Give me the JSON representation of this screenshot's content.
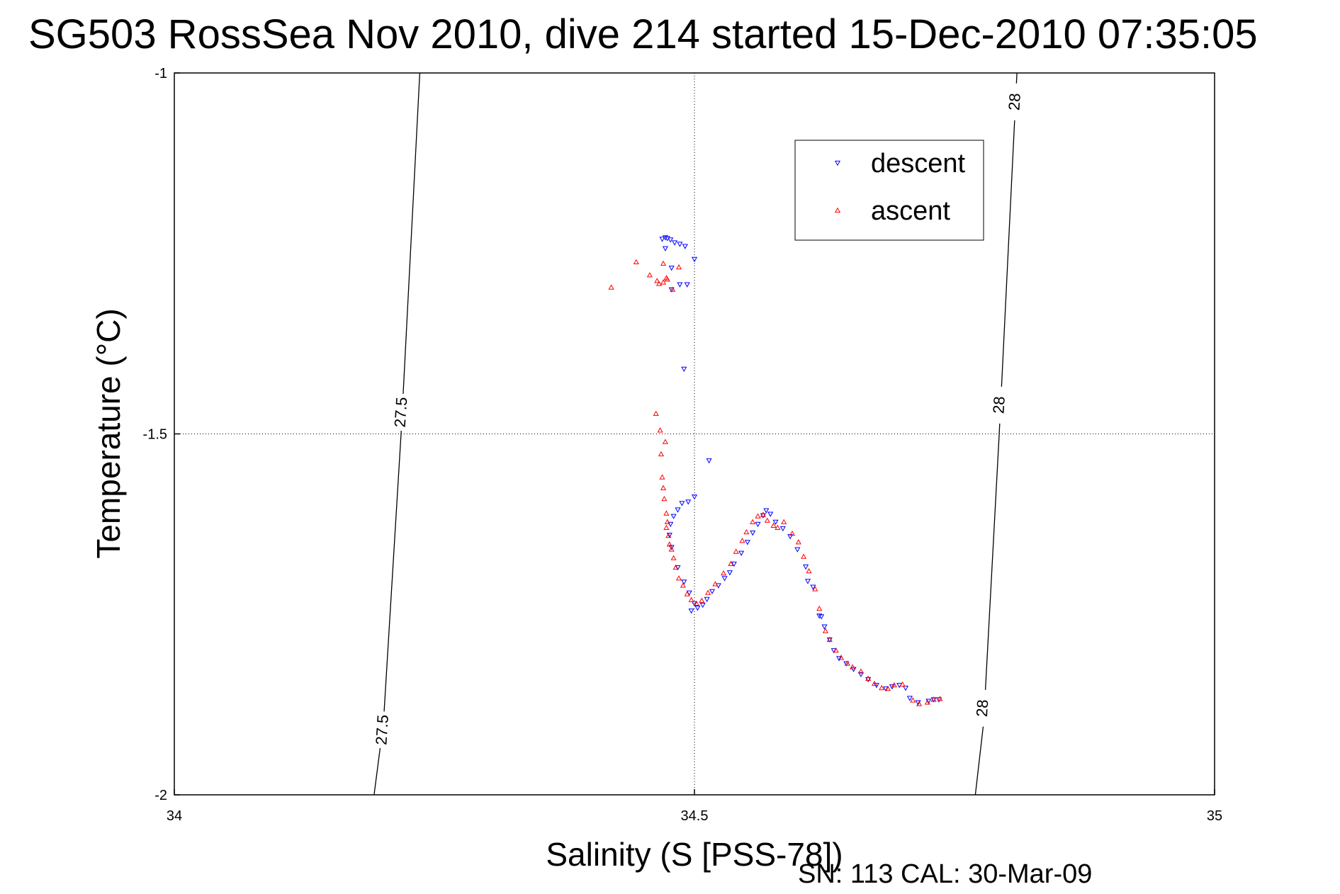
{
  "chart_data": {
    "type": "scatter",
    "title": "SG503 RossSea Nov 2010, dive 214 started 15-Dec-2010 07:35:05",
    "xlabel": "Salinity (S [PSS-78])",
    "ylabel": "Temperature (°C)",
    "xlim": [
      34,
      35
    ],
    "ylim": [
      -2,
      -1
    ],
    "xticks": [
      34,
      34.5,
      35
    ],
    "xtick_labels": [
      "34",
      "34.5",
      "35"
    ],
    "yticks": [
      -2,
      -1.5,
      -1
    ],
    "ytick_labels": [
      "-2",
      "-1.5",
      "-1"
    ],
    "grid": true,
    "legend_position": "top-right",
    "footer": "SN: 113  CAL: 30-Mar-09",
    "isopycnals": [
      {
        "sigma": "27.5",
        "points": [
          [
            34.192,
            -2.0
          ],
          [
            34.201,
            -1.9
          ],
          [
            34.218,
            -1.5
          ],
          [
            34.236,
            -1.0
          ]
        ],
        "labels": [
          {
            "x": 34.2,
            "y": -1.91,
            "text": "27.5"
          },
          {
            "x": 34.218,
            "y": -1.47,
            "text": "27.5"
          }
        ]
      },
      {
        "sigma": "28",
        "points": [
          [
            34.77,
            -2.0
          ],
          [
            34.778,
            -1.9
          ],
          [
            34.793,
            -1.5
          ],
          [
            34.81,
            -1.0
          ]
        ],
        "labels": [
          {
            "x": 34.777,
            "y": -1.88,
            "text": "28"
          },
          {
            "x": 34.793,
            "y": -1.46,
            "text": "28"
          },
          {
            "x": 34.808,
            "y": -1.04,
            "text": "28"
          }
        ]
      }
    ],
    "series": [
      {
        "name": "descent",
        "marker": "triangle-down",
        "color": "#0000ff",
        "points": [
          [
            34.469,
            -1.23
          ],
          [
            34.472,
            -1.228
          ],
          [
            34.474,
            -1.229
          ],
          [
            34.477,
            -1.231
          ],
          [
            34.481,
            -1.235
          ],
          [
            34.486,
            -1.237
          ],
          [
            34.491,
            -1.24
          ],
          [
            34.472,
            -1.243
          ],
          [
            34.5,
            -1.258
          ],
          [
            34.478,
            -1.27
          ],
          [
            34.486,
            -1.293
          ],
          [
            34.493,
            -1.293
          ],
          [
            34.478,
            -1.3
          ],
          [
            34.49,
            -1.41
          ],
          [
            34.514,
            -1.537
          ],
          [
            34.5,
            -1.587
          ],
          [
            34.494,
            -1.594
          ],
          [
            34.488,
            -1.596
          ],
          [
            34.484,
            -1.605
          ],
          [
            34.48,
            -1.614
          ],
          [
            34.477,
            -1.625
          ],
          [
            34.476,
            -1.64
          ],
          [
            34.478,
            -1.657
          ],
          [
            34.484,
            -1.685
          ],
          [
            34.49,
            -1.705
          ],
          [
            34.495,
            -1.72
          ],
          [
            34.5,
            -1.735
          ],
          [
            34.503,
            -1.741
          ],
          [
            34.508,
            -1.737
          ],
          [
            34.512,
            -1.729
          ],
          [
            34.517,
            -1.718
          ],
          [
            34.523,
            -1.71
          ],
          [
            34.529,
            -1.7
          ],
          [
            34.534,
            -1.692
          ],
          [
            34.538,
            -1.68
          ],
          [
            34.545,
            -1.665
          ],
          [
            34.551,
            -1.65
          ],
          [
            34.556,
            -1.637
          ],
          [
            34.561,
            -1.625
          ],
          [
            34.566,
            -1.613
          ],
          [
            34.569,
            -1.606
          ],
          [
            34.573,
            -1.611
          ],
          [
            34.578,
            -1.622
          ],
          [
            34.585,
            -1.631
          ],
          [
            34.592,
            -1.642
          ],
          [
            34.599,
            -1.66
          ],
          [
            34.607,
            -1.684
          ],
          [
            34.614,
            -1.712
          ],
          [
            34.62,
            -1.752
          ],
          [
            34.625,
            -1.767
          ],
          [
            34.63,
            -1.785
          ],
          [
            34.634,
            -1.8
          ],
          [
            34.639,
            -1.811
          ],
          [
            34.646,
            -1.818
          ],
          [
            34.653,
            -1.826
          ],
          [
            34.66,
            -1.833
          ],
          [
            34.667,
            -1.84
          ],
          [
            34.675,
            -1.848
          ],
          [
            34.684,
            -1.853
          ],
          [
            34.69,
            -1.85
          ],
          [
            34.697,
            -1.848
          ],
          [
            34.703,
            -1.852
          ],
          [
            34.707,
            -1.866
          ],
          [
            34.715,
            -1.872
          ],
          [
            34.725,
            -1.87
          ],
          [
            34.73,
            -1.868
          ],
          [
            34.735,
            -1.868
          ],
          [
            34.622,
            -1.753
          ],
          [
            34.609,
            -1.704
          ],
          [
            34.497,
            -1.745
          ]
        ]
      },
      {
        "name": "ascent",
        "marker": "triangle-up",
        "color": "#ff0000",
        "points": [
          [
            34.444,
            -1.262
          ],
          [
            34.47,
            -1.264
          ],
          [
            34.485,
            -1.269
          ],
          [
            34.473,
            -1.284
          ],
          [
            34.457,
            -1.28
          ],
          [
            34.464,
            -1.288
          ],
          [
            34.47,
            -1.29
          ],
          [
            34.466,
            -1.292
          ],
          [
            34.474,
            -1.286
          ],
          [
            34.479,
            -1.3
          ],
          [
            34.42,
            -1.297
          ],
          [
            34.463,
            -1.472
          ],
          [
            34.467,
            -1.495
          ],
          [
            34.472,
            -1.511
          ],
          [
            34.468,
            -1.528
          ],
          [
            34.469,
            -1.56
          ],
          [
            34.47,
            -1.575
          ],
          [
            34.471,
            -1.59
          ],
          [
            34.473,
            -1.61
          ],
          [
            34.474,
            -1.622
          ],
          [
            34.473,
            -1.63
          ],
          [
            34.475,
            -1.641
          ],
          [
            34.476,
            -1.653
          ],
          [
            34.478,
            -1.66
          ],
          [
            34.48,
            -1.672
          ],
          [
            34.482,
            -1.685
          ],
          [
            34.485,
            -1.7
          ],
          [
            34.489,
            -1.71
          ],
          [
            34.493,
            -1.722
          ],
          [
            34.497,
            -1.73
          ],
          [
            34.502,
            -1.735
          ],
          [
            34.507,
            -1.731
          ],
          [
            34.513,
            -1.72
          ],
          [
            34.52,
            -1.708
          ],
          [
            34.528,
            -1.693
          ],
          [
            34.535,
            -1.68
          ],
          [
            34.54,
            -1.663
          ],
          [
            34.546,
            -1.648
          ],
          [
            34.55,
            -1.636
          ],
          [
            34.556,
            -1.622
          ],
          [
            34.561,
            -1.614
          ],
          [
            34.566,
            -1.612
          ],
          [
            34.57,
            -1.62
          ],
          [
            34.576,
            -1.627
          ],
          [
            34.58,
            -1.63
          ],
          [
            34.586,
            -1.622
          ],
          [
            34.594,
            -1.638
          ],
          [
            34.6,
            -1.65
          ],
          [
            34.605,
            -1.67
          ],
          [
            34.61,
            -1.69
          ],
          [
            34.616,
            -1.715
          ],
          [
            34.62,
            -1.742
          ],
          [
            34.626,
            -1.773
          ],
          [
            34.63,
            -1.785
          ],
          [
            34.636,
            -1.8
          ],
          [
            34.641,
            -1.81
          ],
          [
            34.647,
            -1.818
          ],
          [
            34.652,
            -1.823
          ],
          [
            34.66,
            -1.829
          ],
          [
            34.667,
            -1.839
          ],
          [
            34.673,
            -1.846
          ],
          [
            34.68,
            -1.852
          ],
          [
            34.686,
            -1.853
          ],
          [
            34.692,
            -1.848
          ],
          [
            34.7,
            -1.847
          ],
          [
            34.71,
            -1.869
          ],
          [
            34.716,
            -1.874
          ],
          [
            34.724,
            -1.872
          ],
          [
            34.73,
            -1.868
          ],
          [
            34.736,
            -1.867
          ]
        ]
      }
    ]
  }
}
